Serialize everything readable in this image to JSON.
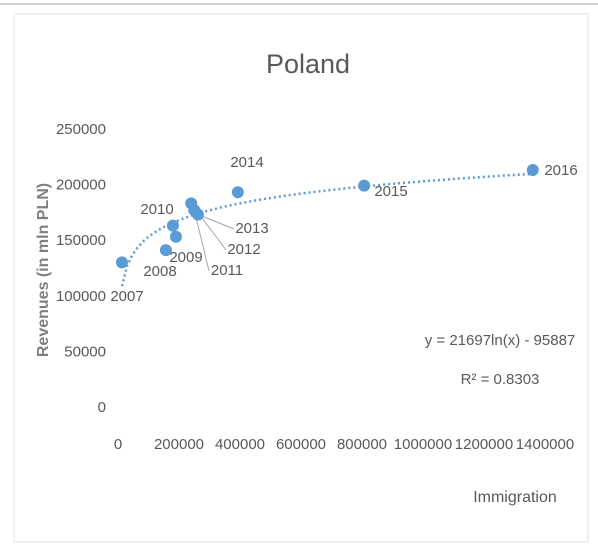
{
  "chart_data": {
    "type": "scatter",
    "title": "Poland",
    "x_label": "Immigration",
    "y_label": "Revenues (in mln PLN)",
    "color": "#5b9bd5",
    "x": [
      13000,
      157000,
      190000,
      180000,
      250000,
      240000,
      262000,
      393000,
      807000,
      1360000
    ],
    "values": [
      131000,
      142000,
      154000,
      164000,
      178000,
      184000,
      174000,
      194000,
      200000,
      214000
    ],
    "point_labels": [
      "2007",
      "2008",
      "2009",
      "2010",
      "2011",
      "2012",
      "2013",
      "2014",
      "2015",
      "2016"
    ],
    "xlim": [
      0,
      1400000
    ],
    "xticks": [
      0,
      200000,
      400000,
      600000,
      800000,
      1000000,
      1200000,
      1400000
    ],
    "ylim": [
      0,
      250000
    ],
    "yticks": [
      0,
      50000,
      100000,
      150000,
      200000,
      250000
    ],
    "grid": false,
    "trendline": {
      "equation": "y = 21697ln(x) - 95887",
      "r2_label": "R² = 0.8303",
      "a": 21697,
      "b": -95887
    }
  }
}
